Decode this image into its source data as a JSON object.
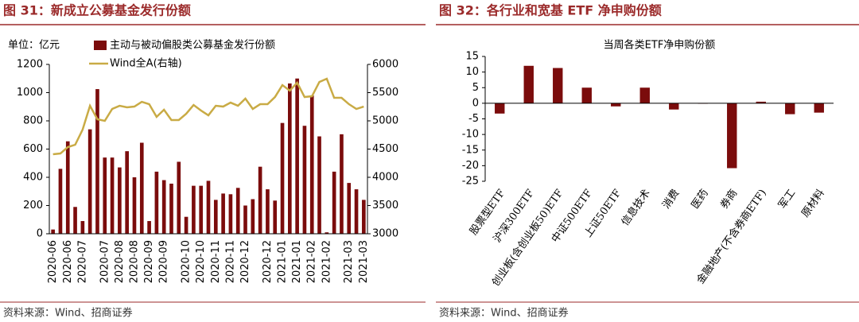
{
  "chart_data": [
    {
      "type": "bar",
      "title": "图 31：新成立公募基金发行份额",
      "unit": "单位：亿元",
      "source": "资料来源：Wind、招商证券",
      "categories": [
        "2020-06",
        null,
        "2020-06",
        null,
        "2020-07",
        null,
        null,
        "2020-07",
        null,
        "2020-08",
        null,
        "2020-08",
        null,
        "2020-09",
        null,
        "2020-09",
        null,
        null,
        "2020-10",
        null,
        "2020-10",
        null,
        "2020-11",
        null,
        "2020-11",
        null,
        "2020-12",
        null,
        null,
        "2020-12",
        null,
        "2021-01",
        null,
        "2021-01",
        null,
        "2021-02",
        null,
        "2021-02",
        null,
        null,
        "2021-03",
        null,
        "2021-03"
      ],
      "series": [
        {
          "name": "主动与被动偏股类公募基金发行份额",
          "color": "#7b0c0c",
          "values": [
            30,
            460,
            655,
            190,
            90,
            740,
            1025,
            540,
            540,
            470,
            585,
            400,
            645,
            90,
            440,
            380,
            355,
            510,
            120,
            340,
            340,
            375,
            240,
            285,
            280,
            325,
            200,
            245,
            475,
            315,
            235,
            785,
            1065,
            1100,
            765,
            980,
            690,
            10,
            440,
            705,
            360,
            315,
            240
          ]
        },
        {
          "name": "Wind全A(右轴)",
          "color": "#c9ab45",
          "axis": "y2",
          "type": "line",
          "values": [
            4408,
            4422,
            4535,
            4577,
            4845,
            5267,
            5028,
            5000,
            5211,
            5267,
            5239,
            5253,
            5337,
            5295,
            5070,
            5197,
            5014,
            5014,
            5126,
            5281,
            5183,
            5098,
            5267,
            5253,
            5323,
            5267,
            5394,
            5211,
            5295,
            5295,
            5422,
            5633,
            5535,
            5675,
            5422,
            5436,
            5689,
            5746,
            5408,
            5408,
            5295,
            5211,
            5253
          ]
        }
      ],
      "ylim": [
        0,
        1200
      ],
      "yticks": [
        0,
        200,
        400,
        600,
        800,
        1000,
        1200
      ],
      "y2lim": [
        3000,
        6000
      ],
      "y2ticks": [
        3000,
        3500,
        4000,
        4500,
        5000,
        5500,
        6000
      ]
    },
    {
      "type": "bar",
      "title": "图 32：各行业和宽基 ETF 净申购份额",
      "subtitle": "当周各类ETF净申购份额",
      "source": "资料来源：Wind、招商证券",
      "categories": [
        "股票型ETF",
        "沪深300ETF",
        "创业板(含创业板50)ETF",
        "中证500ETF",
        "上证50ETF",
        "信息技术",
        "消费",
        "医药",
        "券商",
        "金融地产(不含券商ETF)",
        "军工",
        "原材料"
      ],
      "values": [
        -3.3,
        12,
        11.3,
        5,
        -1,
        5,
        -2,
        0,
        -20.8,
        0.5,
        -3.5,
        -3
      ],
      "color": "#7b0c0c",
      "ylim": [
        -25,
        15
      ],
      "yticks": [
        -25,
        -20,
        -15,
        -10,
        -5,
        0,
        5,
        10,
        15
      ]
    }
  ]
}
